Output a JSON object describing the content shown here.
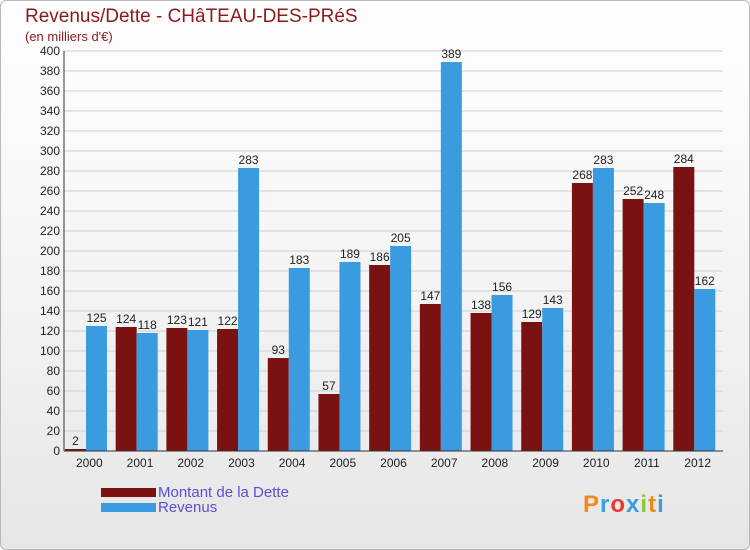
{
  "chart_data": {
    "type": "bar",
    "title": "Revenus/Dette - CHâTEAU-DES-PRéS",
    "subtitle": "(en milliers d'€)",
    "categories": [
      "2000",
      "2001",
      "2002",
      "2003",
      "2004",
      "2005",
      "2006",
      "2007",
      "2008",
      "2009",
      "2010",
      "2011",
      "2012"
    ],
    "series": [
      {
        "name": "Montant de la Dette",
        "color": "#7a1212",
        "values": [
          2,
          124,
          123,
          122,
          93,
          57,
          186,
          147,
          138,
          129,
          268,
          252,
          284
        ]
      },
      {
        "name": "Revenus",
        "color": "#3a9be0",
        "values": [
          125,
          118,
          121,
          283,
          183,
          189,
          205,
          389,
          156,
          143,
          283,
          248,
          162
        ]
      }
    ],
    "ylim": [
      0,
      400
    ],
    "yticks": [
      0,
      20,
      40,
      60,
      80,
      100,
      120,
      140,
      160,
      180,
      200,
      220,
      240,
      260,
      280,
      300,
      320,
      340,
      360,
      380,
      400
    ],
    "grid": true,
    "legend_position": "bottom-left"
  },
  "logo": {
    "text": "Proxiti",
    "colors": [
      "#f08a1c",
      "#3a9be0",
      "#e23b2e",
      "#3a9be0",
      "#8cc63f",
      "#f08a1c",
      "#3a9be0"
    ]
  }
}
